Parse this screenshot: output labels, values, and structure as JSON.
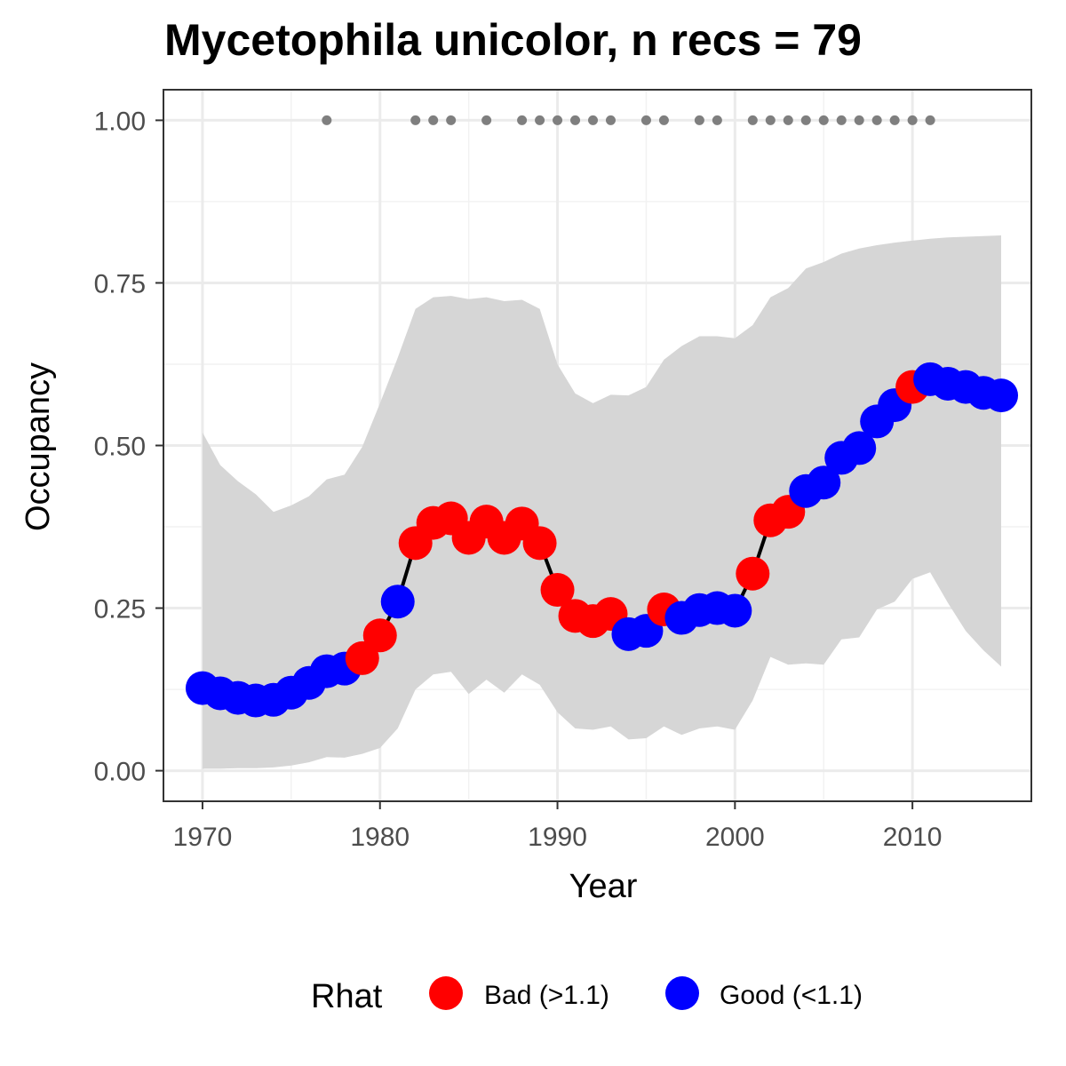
{
  "chart_data": {
    "type": "line",
    "title": "Mycetophila unicolor, n recs = 79",
    "xlabel": "Year",
    "ylabel": "Occupancy",
    "xlim": [
      1967.8,
      2016.7
    ],
    "ylim": [
      -0.047,
      1.047
    ],
    "x_ticks": [
      1970,
      1980,
      1990,
      2000,
      2010
    ],
    "x_tick_labels": [
      "1970",
      "1980",
      "1990",
      "2000",
      "2010"
    ],
    "y_ticks": [
      0,
      0.25,
      0.5,
      0.75,
      1.0
    ],
    "y_tick_labels": [
      "0.00",
      "0.25",
      "0.50",
      "0.75",
      "1.00"
    ],
    "grid": true,
    "legend": {
      "title": "Rhat",
      "position": "bottom",
      "entries": [
        {
          "label": "Bad (>1.1)",
          "color": "#ff0000"
        },
        {
          "label": "Good (<1.1)",
          "color": "#0000ff"
        }
      ]
    },
    "colors": {
      "line": "#000000",
      "ribbon": "#d6d6d6",
      "records": "#7f7f7f",
      "bad": "#ff0000",
      "good": "#0000ff"
    },
    "series": [
      {
        "name": "Occupancy",
        "x": [
          1970,
          1971,
          1972,
          1973,
          1974,
          1975,
          1976,
          1977,
          1978,
          1979,
          1980,
          1981,
          1982,
          1983,
          1984,
          1985,
          1986,
          1987,
          1988,
          1989,
          1990,
          1991,
          1992,
          1993,
          1994,
          1995,
          1996,
          1997,
          1998,
          1999,
          2000,
          2001,
          2002,
          2003,
          2004,
          2005,
          2006,
          2007,
          2008,
          2009,
          2010,
          2011,
          2012,
          2013,
          2014,
          2015
        ],
        "y": [
          0.127,
          0.119,
          0.112,
          0.108,
          0.109,
          0.12,
          0.135,
          0.153,
          0.157,
          0.173,
          0.208,
          0.26,
          0.35,
          0.381,
          0.388,
          0.358,
          0.383,
          0.358,
          0.38,
          0.35,
          0.278,
          0.238,
          0.23,
          0.241,
          0.21,
          0.215,
          0.248,
          0.235,
          0.247,
          0.25,
          0.246,
          0.303,
          0.385,
          0.398,
          0.43,
          0.443,
          0.481,
          0.496,
          0.537,
          0.562,
          0.59,
          0.602,
          0.595,
          0.59,
          0.581,
          0.577
        ],
        "rhat": [
          "Good",
          "Good",
          "Good",
          "Good",
          "Good",
          "Good",
          "Good",
          "Good",
          "Good",
          "Bad",
          "Bad",
          "Good",
          "Bad",
          "Bad",
          "Bad",
          "Bad",
          "Bad",
          "Bad",
          "Bad",
          "Bad",
          "Bad",
          "Bad",
          "Bad",
          "Bad",
          "Good",
          "Good",
          "Bad",
          "Good",
          "Good",
          "Good",
          "Good",
          "Bad",
          "Bad",
          "Bad",
          "Good",
          "Good",
          "Good",
          "Good",
          "Good",
          "Good",
          "Bad",
          "Good",
          "Good",
          "Good",
          "Good",
          "Good"
        ],
        "lower": [
          0.003,
          0.003,
          0.004,
          0.004,
          0.005,
          0.008,
          0.013,
          0.021,
          0.02,
          0.026,
          0.035,
          0.065,
          0.125,
          0.148,
          0.152,
          0.118,
          0.14,
          0.12,
          0.148,
          0.132,
          0.09,
          0.065,
          0.063,
          0.068,
          0.048,
          0.05,
          0.068,
          0.055,
          0.065,
          0.068,
          0.063,
          0.108,
          0.175,
          0.163,
          0.165,
          0.163,
          0.202,
          0.205,
          0.248,
          0.26,
          0.295,
          0.305,
          0.258,
          0.215,
          0.185,
          0.16
        ],
        "upper": [
          0.52,
          0.47,
          0.445,
          0.425,
          0.398,
          0.408,
          0.422,
          0.448,
          0.455,
          0.498,
          0.565,
          0.635,
          0.71,
          0.728,
          0.73,
          0.725,
          0.728,
          0.722,
          0.724,
          0.71,
          0.625,
          0.58,
          0.565,
          0.578,
          0.577,
          0.59,
          0.632,
          0.653,
          0.668,
          0.668,
          0.665,
          0.685,
          0.728,
          0.742,
          0.772,
          0.782,
          0.795,
          0.803,
          0.808,
          0.812,
          0.815,
          0.818,
          0.82,
          0.821,
          0.822,
          0.823
        ]
      },
      {
        "name": "Records",
        "x": [
          1977,
          1982,
          1983,
          1984,
          1986,
          1988,
          1989,
          1990,
          1991,
          1992,
          1993,
          1995,
          1996,
          1998,
          1999,
          2001,
          2002,
          2003,
          2004,
          2005,
          2006,
          2007,
          2008,
          2009,
          2010,
          2011
        ],
        "y": [
          1,
          1,
          1,
          1,
          1,
          1,
          1,
          1,
          1,
          1,
          1,
          1,
          1,
          1,
          1,
          1,
          1,
          1,
          1,
          1,
          1,
          1,
          1,
          1,
          1,
          1
        ]
      }
    ]
  }
}
